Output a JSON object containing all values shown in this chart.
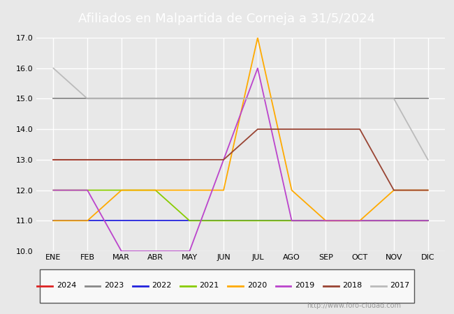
{
  "title": "Afiliados en Malpartida de Corneja a 31/5/2024",
  "title_color": "#ffffff",
  "title_bg_color": "#4466bb",
  "ylim": [
    10.0,
    17.0
  ],
  "yticks": [
    10.0,
    11.0,
    12.0,
    13.0,
    14.0,
    15.0,
    16.0,
    17.0
  ],
  "months": [
    "ENE",
    "FEB",
    "MAR",
    "ABR",
    "MAY",
    "JUN",
    "JUL",
    "AGO",
    "SEP",
    "OCT",
    "NOV",
    "DIC"
  ],
  "month_indices": [
    1,
    2,
    3,
    4,
    5,
    6,
    7,
    8,
    9,
    10,
    11,
    12
  ],
  "watermark": "http://www.foro-ciudad.com",
  "series": [
    {
      "label": "2024",
      "color": "#dd2222",
      "data": [
        [
          1,
          13
        ],
        [
          2,
          13
        ],
        [
          3,
          13
        ],
        [
          4,
          13
        ],
        [
          5,
          13
        ]
      ]
    },
    {
      "label": "2023",
      "color": "#888888",
      "data": [
        [
          1,
          15
        ],
        [
          2,
          15
        ],
        [
          3,
          15
        ],
        [
          4,
          15
        ],
        [
          5,
          15
        ],
        [
          6,
          15
        ],
        [
          7,
          15
        ],
        [
          8,
          15
        ],
        [
          9,
          15
        ],
        [
          10,
          15
        ],
        [
          11,
          15
        ],
        [
          12,
          15
        ]
      ]
    },
    {
      "label": "2022",
      "color": "#2222dd",
      "data": [
        [
          1,
          11
        ],
        [
          2,
          11
        ],
        [
          3,
          11
        ],
        [
          4,
          11
        ],
        [
          5,
          11
        ],
        [
          6,
          11
        ],
        [
          7,
          11
        ],
        [
          8,
          11
        ],
        [
          9,
          11
        ],
        [
          10,
          11
        ],
        [
          11,
          11
        ],
        [
          12,
          11
        ]
      ]
    },
    {
      "label": "2021",
      "color": "#88cc00",
      "data": [
        [
          1,
          12
        ],
        [
          2,
          12
        ],
        [
          3,
          12
        ],
        [
          4,
          12
        ],
        [
          5,
          11
        ],
        [
          6,
          11
        ],
        [
          7,
          11
        ],
        [
          8,
          11
        ],
        [
          9,
          11
        ],
        [
          10,
          11
        ],
        [
          11,
          11
        ],
        [
          12,
          11
        ]
      ]
    },
    {
      "label": "2020",
      "color": "#ffaa00",
      "data": [
        [
          1,
          11
        ],
        [
          2,
          11
        ],
        [
          3,
          12
        ],
        [
          4,
          12
        ],
        [
          5,
          12
        ],
        [
          6,
          12
        ],
        [
          7,
          17
        ],
        [
          8,
          12
        ],
        [
          9,
          11
        ],
        [
          10,
          11
        ],
        [
          11,
          12
        ],
        [
          12,
          12
        ]
      ]
    },
    {
      "label": "2019",
      "color": "#bb44cc",
      "data": [
        [
          1,
          12
        ],
        [
          2,
          12
        ],
        [
          3,
          10
        ],
        [
          4,
          10
        ],
        [
          5,
          10
        ],
        [
          6,
          13
        ],
        [
          7,
          16
        ],
        [
          8,
          11
        ],
        [
          9,
          11
        ],
        [
          10,
          11
        ],
        [
          11,
          11
        ],
        [
          12,
          11
        ]
      ]
    },
    {
      "label": "2018",
      "color": "#994433",
      "data": [
        [
          1,
          13
        ],
        [
          2,
          13
        ],
        [
          3,
          13
        ],
        [
          4,
          13
        ],
        [
          5,
          13
        ],
        [
          6,
          13
        ],
        [
          7,
          14
        ],
        [
          8,
          14
        ],
        [
          9,
          14
        ],
        [
          10,
          14
        ],
        [
          11,
          12
        ],
        [
          12,
          12
        ]
      ]
    },
    {
      "label": "2017",
      "color": "#bbbbbb",
      "data": [
        [
          1,
          16
        ],
        [
          2,
          15
        ],
        [
          3,
          15
        ],
        [
          4,
          15
        ],
        [
          5,
          15
        ],
        [
          6,
          15
        ],
        [
          7,
          15
        ],
        [
          8,
          15
        ],
        [
          9,
          15
        ],
        [
          10,
          15
        ],
        [
          11,
          15
        ],
        [
          12,
          13
        ]
      ]
    }
  ],
  "background_color": "#e8e8e8",
  "plot_bg_color": "#e8e8e8",
  "grid_color": "#ffffff",
  "fig_width": 6.5,
  "fig_height": 4.5,
  "dpi": 100
}
